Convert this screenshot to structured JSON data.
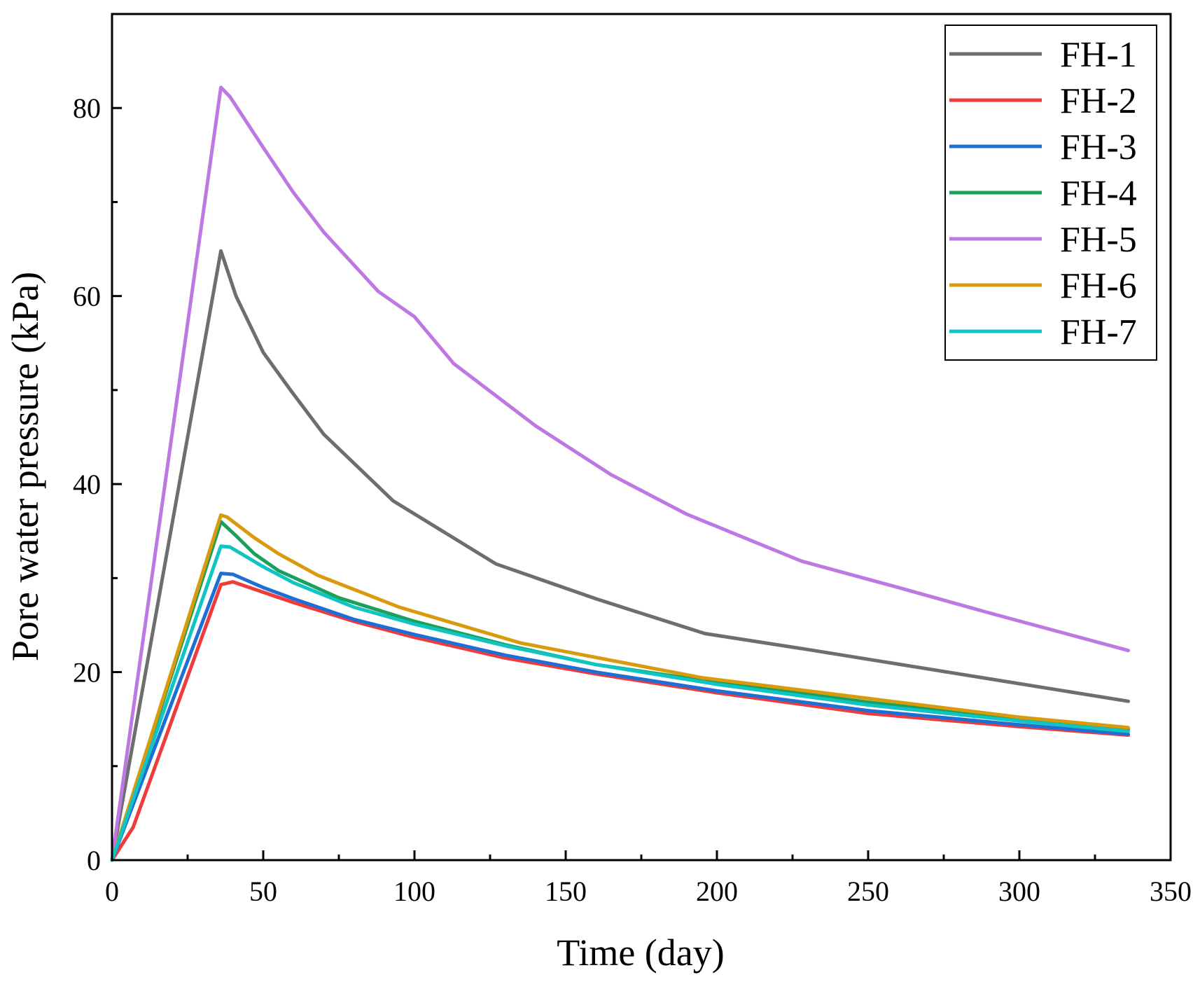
{
  "chart_data": {
    "type": "line",
    "title": "",
    "xlabel": "Time (day)",
    "ylabel": "Pore water pressure (kPa)",
    "xlim": [
      0,
      350
    ],
    "ylim": [
      0,
      90
    ],
    "xticks": [
      0,
      50,
      100,
      150,
      200,
      250,
      300,
      350
    ],
    "xtick_labels": [
      "0",
      "50",
      "100",
      "150",
      "200",
      "250",
      "300",
      "350"
    ],
    "yticks": [
      0,
      20,
      40,
      60,
      80
    ],
    "ytick_labels": [
      "0",
      "20",
      "40",
      "60",
      "80"
    ],
    "grid": false,
    "legend_position": "top-right",
    "series": [
      {
        "name": "FH-1",
        "color": "#6e6e6e",
        "x": [
          0,
          36,
          41,
          50,
          59,
          70,
          93,
          127,
          160,
          196,
          230,
          336
        ],
        "y": [
          0,
          64.8,
          60,
          54,
          50,
          45.3,
          38.2,
          31.5,
          27.8,
          24.1,
          22.4,
          16.9
        ]
      },
      {
        "name": "FH-2",
        "color": "#ef3b3b",
        "x": [
          0,
          7,
          36,
          40,
          50,
          60,
          80,
          100,
          130,
          160,
          200,
          250,
          300,
          336
        ],
        "y": [
          0,
          3.5,
          29.3,
          29.6,
          28.5,
          27.4,
          25.4,
          23.7,
          21.5,
          19.8,
          17.8,
          15.6,
          14.2,
          13.3
        ]
      },
      {
        "name": "FH-3",
        "color": "#1f6ed4",
        "x": [
          0,
          36,
          40,
          50,
          60,
          80,
          100,
          130,
          160,
          200,
          250,
          300,
          336
        ],
        "y": [
          0,
          30.5,
          30.4,
          29,
          27.8,
          25.6,
          24,
          21.8,
          20,
          18,
          15.9,
          14.4,
          13.4
        ]
      },
      {
        "name": "FH-4",
        "color": "#19a05b",
        "x": [
          0,
          36,
          41,
          47,
          55,
          75,
          100,
          130,
          160,
          200,
          250,
          300,
          336
        ],
        "y": [
          0,
          36,
          34.5,
          32.6,
          30.8,
          27.9,
          25.4,
          22.9,
          20.8,
          18.9,
          16.8,
          15,
          13.9
        ]
      },
      {
        "name": "FH-5",
        "color": "#be78e3",
        "x": [
          0,
          36,
          39,
          50,
          60,
          70,
          88,
          100,
          113,
          140,
          165,
          190,
          228,
          260,
          290,
          336
        ],
        "y": [
          0,
          82.2,
          81.2,
          75.8,
          71,
          66.8,
          60.5,
          57.8,
          52.8,
          46.2,
          41,
          36.8,
          31.8,
          29,
          26.3,
          22.3
        ]
      },
      {
        "name": "FH-6",
        "color": "#d99a0e",
        "x": [
          0,
          36,
          38,
          47,
          55,
          68,
          95,
          135,
          195,
          250,
          300,
          336
        ],
        "y": [
          0,
          36.7,
          36.5,
          34.3,
          32.6,
          30.3,
          26.9,
          23.1,
          19.4,
          17.2,
          15.2,
          14.1
        ]
      },
      {
        "name": "FH-7",
        "color": "#10c4c4",
        "x": [
          0,
          36,
          39,
          50,
          60,
          80,
          100,
          130,
          160,
          200,
          250,
          300,
          336
        ],
        "y": [
          0,
          33.4,
          33.3,
          31.2,
          29.5,
          26.9,
          25.1,
          22.8,
          20.8,
          18.7,
          16.5,
          14.8,
          13.7
        ]
      }
    ]
  }
}
